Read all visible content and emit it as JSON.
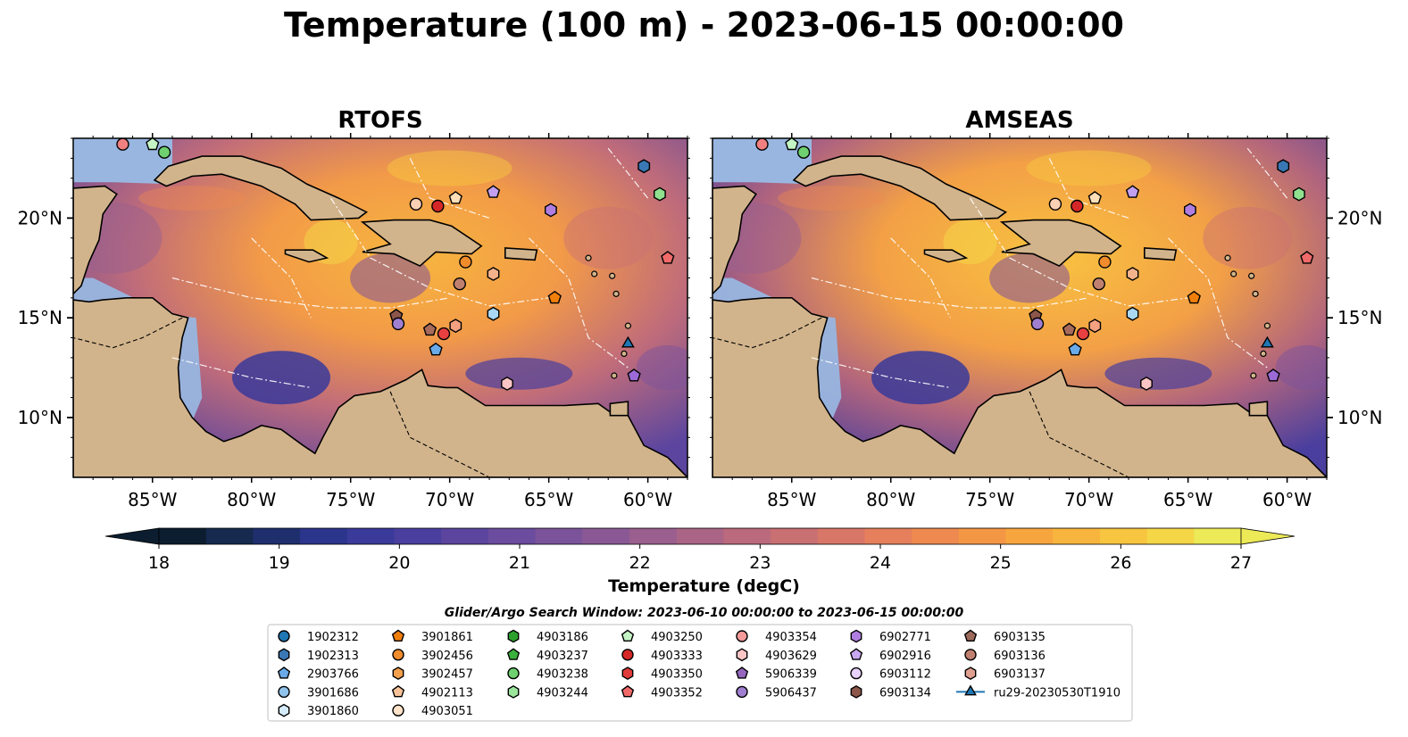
{
  "title": "Temperature (100 m) - 2023-06-15 00:00:00",
  "panels": [
    {
      "title": "RTOFS"
    },
    {
      "title": "AMSEAS"
    }
  ],
  "chart_data": {
    "type": "heatmap",
    "title": "Temperature (100 m) - 2023-06-15 00:00:00",
    "subplots": [
      "RTOFS",
      "AMSEAS"
    ],
    "x_ticks": [
      "85°W",
      "80°W",
      "75°W",
      "70°W",
      "65°W",
      "60°W"
    ],
    "y_ticks": [
      "20°N",
      "15°N",
      "10°N"
    ],
    "x_lim": [
      -89,
      -58
    ],
    "y_lim": [
      7,
      24
    ],
    "colorbar": {
      "label": "Temperature (degC)",
      "min": 18,
      "max": 27,
      "ticks": [
        "18",
        "19",
        "20",
        "21",
        "22",
        "23",
        "24",
        "25",
        "26",
        "27"
      ],
      "colors": [
        "#0b1d2e",
        "#152a4e",
        "#1f2f6e",
        "#2b358c",
        "#3a3a9a",
        "#4a3f9e",
        "#5b459f",
        "#6b4c9e",
        "#7b539b",
        "#8a5995",
        "#9a5f8e",
        "#aa6586",
        "#ba6a7c",
        "#c97073",
        "#d87768",
        "#e57f5c",
        "#ee8a4f",
        "#f49745",
        "#f7a63f",
        "#f8b53e",
        "#f7c540",
        "#f4d647",
        "#ecea56"
      ]
    },
    "floats": [
      {
        "lon": -86.5,
        "lat": 23.7,
        "color": "#f08080",
        "marker": "circle"
      },
      {
        "lon": -85.0,
        "lat": 23.7,
        "color": "#c5f5c5",
        "marker": "pentagon"
      },
      {
        "lon": -84.4,
        "lat": 23.3,
        "color": "#6fd06f",
        "marker": "circle"
      },
      {
        "lon": -71.7,
        "lat": 20.7,
        "color": "#fcd0b4",
        "marker": "circle"
      },
      {
        "lon": -70.6,
        "lat": 20.6,
        "color": "#d62728",
        "marker": "circle"
      },
      {
        "lon": -69.7,
        "lat": 21.0,
        "color": "#fde0b8",
        "marker": "pentagon"
      },
      {
        "lon": -67.8,
        "lat": 21.3,
        "color": "#c29ff0",
        "marker": "pentagon"
      },
      {
        "lon": -64.9,
        "lat": 20.4,
        "color": "#b07ee0",
        "marker": "hexagon"
      },
      {
        "lon": -60.2,
        "lat": 22.6,
        "color": "#3a78b5",
        "marker": "hexagon"
      },
      {
        "lon": -59.4,
        "lat": 21.2,
        "color": "#8fe08f",
        "marker": "hexagon"
      },
      {
        "lon": -59.0,
        "lat": 18.0,
        "color": "#f06a6a",
        "marker": "pentagon"
      },
      {
        "lon": -69.2,
        "lat": 17.8,
        "color": "#f08c2c",
        "marker": "circle"
      },
      {
        "lon": -67.8,
        "lat": 17.2,
        "color": "#f4b28c",
        "marker": "hexagon"
      },
      {
        "lon": -69.5,
        "lat": 16.7,
        "color": "#c08070",
        "marker": "circle"
      },
      {
        "lon": -64.7,
        "lat": 16.0,
        "color": "#f07f0c",
        "marker": "pentagon"
      },
      {
        "lon": -67.8,
        "lat": 15.2,
        "color": "#a9d8f5",
        "marker": "hexagon"
      },
      {
        "lon": -72.7,
        "lat": 15.1,
        "color": "#8c564b",
        "marker": "pentagon"
      },
      {
        "lon": -72.6,
        "lat": 14.7,
        "color": "#a07fd0",
        "marker": "circle"
      },
      {
        "lon": -71.0,
        "lat": 14.4,
        "color": "#a86a5a",
        "marker": "pentagon"
      },
      {
        "lon": -70.3,
        "lat": 14.2,
        "color": "#e84040",
        "marker": "circle"
      },
      {
        "lon": -69.7,
        "lat": 14.6,
        "color": "#f5a080",
        "marker": "hexagon"
      },
      {
        "lon": -70.7,
        "lat": 13.4,
        "color": "#6aaae8",
        "marker": "pentagon"
      },
      {
        "lon": -67.1,
        "lat": 11.7,
        "color": "#fcc5c5",
        "marker": "hexagon"
      },
      {
        "lon": -61.0,
        "lat": 13.7,
        "color": "#1f77b4",
        "marker": "triangle"
      },
      {
        "lon": -60.7,
        "lat": 12.1,
        "color": "#9b6ad8",
        "marker": "pentagon"
      }
    ]
  },
  "legend": {
    "title": "Glider/Argo Search Window: 2023-06-10 00:00:00 to 2023-06-15 00:00:00",
    "columns": [
      [
        {
          "label": "1902312",
          "color": "#1f77b4",
          "marker": "circle"
        },
        {
          "label": "1902313",
          "color": "#3a78b5",
          "marker": "hexagon"
        },
        {
          "label": "2903766",
          "color": "#6aaae8",
          "marker": "pentagon"
        },
        {
          "label": "3901686",
          "color": "#8fc3eb",
          "marker": "circle"
        },
        {
          "label": "3901860",
          "color": "#d4ebfb",
          "marker": "hexagon"
        }
      ],
      [
        {
          "label": "3901861",
          "color": "#f07f0c",
          "marker": "pentagon"
        },
        {
          "label": "3902456",
          "color": "#f08c2c",
          "marker": "circle"
        },
        {
          "label": "3902457",
          "color": "#f5a04c",
          "marker": "hexagon"
        },
        {
          "label": "4902113",
          "color": "#f8c39a",
          "marker": "pentagon"
        },
        {
          "label": "4903051",
          "color": "#fde3c8",
          "marker": "circle"
        }
      ],
      [
        {
          "label": "4903186",
          "color": "#2ca02c",
          "marker": "hexagon"
        },
        {
          "label": "4903237",
          "color": "#3cb03c",
          "marker": "pentagon"
        },
        {
          "label": "4903238",
          "color": "#6fd06f",
          "marker": "circle"
        },
        {
          "label": "4903244",
          "color": "#9be59b",
          "marker": "hexagon"
        }
      ],
      [
        {
          "label": "4903250",
          "color": "#c5f5c5",
          "marker": "pentagon"
        },
        {
          "label": "4903333",
          "color": "#d62728",
          "marker": "circle"
        },
        {
          "label": "4903350",
          "color": "#e03c3c",
          "marker": "hexagon"
        },
        {
          "label": "4903352",
          "color": "#f06a6a",
          "marker": "pentagon"
        }
      ],
      [
        {
          "label": "4903354",
          "color": "#f59a9a",
          "marker": "circle"
        },
        {
          "label": "4903629",
          "color": "#fcc5c5",
          "marker": "hexagon"
        },
        {
          "label": "5906339",
          "color": "#9467bd",
          "marker": "pentagon"
        },
        {
          "label": "5906437",
          "color": "#a07fd0",
          "marker": "circle"
        }
      ],
      [
        {
          "label": "6902771",
          "color": "#b07ee0",
          "marker": "hexagon"
        },
        {
          "label": "6902916",
          "color": "#c8a8f0",
          "marker": "pentagon"
        },
        {
          "label": "6903112",
          "color": "#e6d2fa",
          "marker": "circle"
        },
        {
          "label": "6903134",
          "color": "#8c564b",
          "marker": "hexagon"
        }
      ],
      [
        {
          "label": "6903135",
          "color": "#9c6a5a",
          "marker": "pentagon"
        },
        {
          "label": "6903136",
          "color": "#c08070",
          "marker": "circle"
        },
        {
          "label": "6903137",
          "color": "#e0a090",
          "marker": "hexagon"
        },
        {
          "label": "ru29-20230530T1910",
          "color": "#1f77b4",
          "marker": "triangle-line"
        }
      ]
    ]
  },
  "colors": {
    "land": "#d2b48c",
    "shallow": "#98b6e0",
    "ocean_warm": "#f5a040",
    "ocean_cool": "#6b4c9e"
  }
}
